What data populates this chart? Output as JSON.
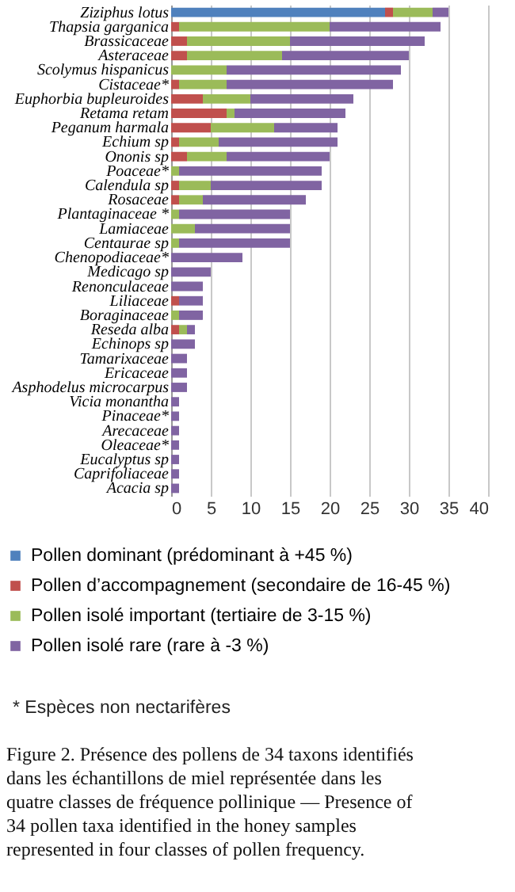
{
  "chart_data": {
    "type": "bar",
    "orientation": "horizontal",
    "stacked": true,
    "categories": [
      "Ziziphus lotus",
      "Thapsia garganica",
      "Brassicaceae",
      "Asteraceae",
      "Scolymus hispanicus",
      "Cistaceae*",
      "Euphorbia bupleuroides",
      "Retama retam",
      "Peganum harmala",
      "Echium sp",
      "Ononis sp",
      "Poaceae*",
      "Calendula sp",
      "Rosaceae",
      "Plantaginaceae *",
      "Lamiaceae",
      "Centaurae sp",
      "Chenopodiaceae*",
      "Medicago sp",
      "Renonculaceae",
      "Liliaceae",
      "Boraginaceae",
      "Reseda alba",
      "Echinops sp",
      "Tamarixaceae",
      "Ericaceae",
      "Asphodelus microcarpus",
      "Vicia monantha",
      "Pinaceae*",
      "Arecaceae",
      "Oleaceae*",
      "Eucalyptus sp",
      "Caprifoliaceae",
      "Acacia sp"
    ],
    "series": [
      {
        "name": "Pollen dominant (prédominant à +45 %)",
        "color": "#4f81bd",
        "values": [
          27,
          0,
          0,
          0,
          0,
          0,
          0,
          0,
          0,
          0,
          0,
          0,
          0,
          0,
          0,
          0,
          0,
          0,
          0,
          0,
          0,
          0,
          0,
          0,
          0,
          0,
          0,
          0,
          0,
          0,
          0,
          0,
          0,
          0
        ]
      },
      {
        "name": "Pollen d’accompagnement (secondaire de 16-45 %)",
        "color": "#c0504d",
        "values": [
          1,
          1,
          2,
          2,
          0,
          1,
          4,
          7,
          5,
          1,
          2,
          0,
          1,
          1,
          0,
          0,
          0,
          0,
          0,
          0,
          1,
          0,
          1,
          0,
          0,
          0,
          0,
          0,
          0,
          0,
          0,
          0,
          0,
          0
        ]
      },
      {
        "name": "Pollen isolé important (tertiaire de 3-15 %)",
        "color": "#9bbb59",
        "values": [
          5,
          19,
          13,
          12,
          7,
          6,
          6,
          1,
          8,
          5,
          5,
          1,
          4,
          3,
          1,
          3,
          1,
          0,
          0,
          0,
          0,
          1,
          1,
          0,
          0,
          0,
          0,
          0,
          0,
          0,
          0,
          0,
          0,
          0
        ]
      },
      {
        "name": "Pollen isolé rare (rare à -3 %)",
        "color": "#8064a2",
        "values": [
          2,
          14,
          17,
          16,
          22,
          21,
          13,
          14,
          8,
          15,
          13,
          18,
          14,
          13,
          14,
          12,
          14,
          9,
          5,
          4,
          3,
          3,
          1,
          3,
          2,
          2,
          2,
          1,
          1,
          1,
          1,
          1,
          1,
          1
        ]
      }
    ],
    "xlim": [
      0,
      40
    ],
    "xticks": [
      0,
      5,
      10,
      15,
      20,
      25,
      30,
      35,
      40
    ],
    "grid": "x",
    "legend": "bottom",
    "annotations": [
      "* Espèces non nectarifères",
      "Figure 2. Présence des pollens de 34 taxons identifiés dans les échantillons de miel représentée dans les quatre classes de fréquence pollinique — Presence of 34 pollen taxa identified in the honey samples represented in four classes of pollen frequency."
    ]
  }
}
